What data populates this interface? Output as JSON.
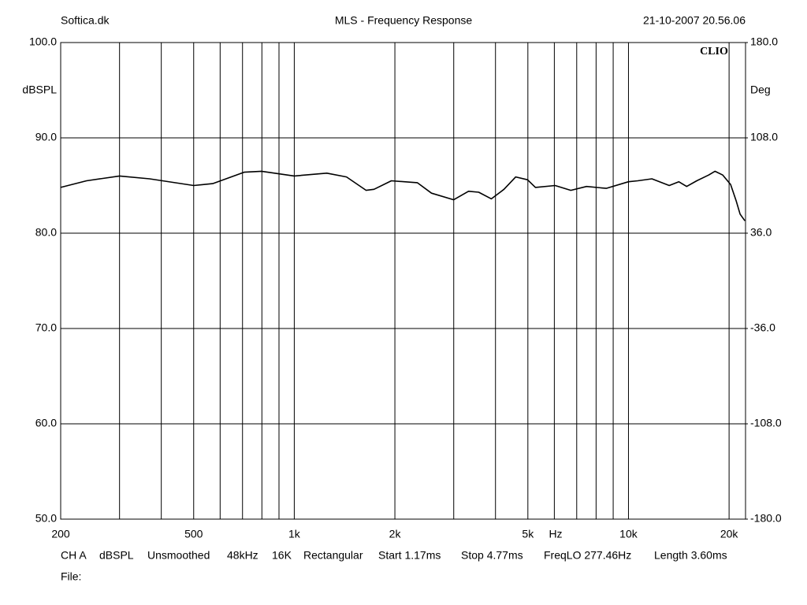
{
  "header": {
    "left": "Softica.dk",
    "right": "21-10-2007 20.56.06",
    "logo": "CLIO"
  },
  "chart_data": {
    "type": "line",
    "title": "MLS - Frequency Response",
    "y_label": "dBSPL",
    "y2_label": "Deg",
    "x_label": "Hz",
    "xscale": "log",
    "grid": true,
    "xlim": [
      200,
      22400
    ],
    "ylim": [
      50,
      100
    ],
    "y2lim": [
      -180,
      180
    ],
    "xticks": [
      200,
      {
        "value": 300,
        "label": null
      },
      {
        "value": 400,
        "label": null
      },
      500,
      {
        "value": 600,
        "label": null
      },
      {
        "value": 700,
        "label": null
      },
      {
        "value": 800,
        "label": null
      },
      {
        "value": 900,
        "label": null
      },
      {
        "value": 1000,
        "label": "1k"
      },
      {
        "value": 2000,
        "label": "2k"
      },
      {
        "value": 3000,
        "label": null
      },
      {
        "value": 4000,
        "label": null
      },
      {
        "value": 5000,
        "label": "5k"
      },
      {
        "value": 6000,
        "label": null
      },
      {
        "value": 7000,
        "label": null
      },
      {
        "value": 8000,
        "label": null
      },
      {
        "value": 9000,
        "label": null
      },
      {
        "value": 10000,
        "label": "10k"
      },
      {
        "value": 20000,
        "label": "20k"
      }
    ],
    "yticks": [
      {
        "value": 100,
        "label": "100.0"
      },
      {
        "value": 90,
        "label": "90.0"
      },
      {
        "value": 80,
        "label": "80.0"
      },
      {
        "value": 70,
        "label": "70.0"
      },
      {
        "value": 60,
        "label": "60.0"
      },
      {
        "value": 50,
        "label": "50.0"
      }
    ],
    "y2ticks": [
      {
        "value": 180,
        "label": "180.0"
      },
      {
        "value": 108,
        "label": "108.0"
      },
      {
        "value": 36,
        "label": "36.0"
      },
      {
        "value": -36,
        "label": "-36.0"
      },
      {
        "value": -108,
        "label": "-108.0"
      },
      {
        "value": -180,
        "label": "-180.0"
      }
    ],
    "x": [
      200,
      239,
      300,
      369,
      500,
      570,
      708,
      798,
      1000,
      1251,
      1433,
      1641,
      1732,
      1952,
      2334,
      2574,
      3000,
      3322,
      3563,
      3888,
      4241,
      4598,
      4988,
      5267,
      6032,
      6722,
      7491,
      8581,
      10000,
      10660,
      11750,
      13240,
      14140,
      14930,
      16010,
      17370,
      18140,
      19150,
      20220,
      21000,
      21580,
      22300
    ],
    "series": [
      {
        "color": "#000000",
        "values": [
          84.8,
          85.5,
          86.0,
          85.7,
          85.0,
          85.2,
          86.4,
          86.5,
          86.0,
          86.3,
          85.9,
          84.5,
          84.6,
          85.5,
          85.3,
          84.2,
          83.5,
          84.4,
          84.3,
          83.6,
          84.6,
          85.9,
          85.6,
          84.8,
          85.0,
          84.5,
          84.9,
          84.7,
          85.4,
          85.5,
          85.7,
          85.0,
          85.4,
          84.9,
          85.5,
          86.1,
          86.5,
          86.1,
          85.1,
          83.4,
          82.0,
          81.3
        ]
      }
    ]
  },
  "footer": {
    "items": [
      "CH A",
      "dBSPL",
      "Unsmoothed",
      "48kHz",
      "16K",
      "Rectangular",
      "Start 1.17ms",
      "Stop 4.77ms",
      "FreqLO 277.46Hz",
      "Length 3.60ms"
    ],
    "file": "File:"
  }
}
